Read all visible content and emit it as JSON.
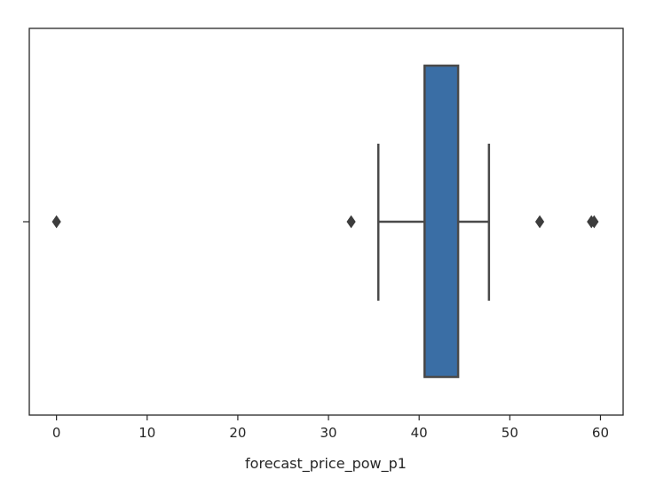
{
  "chart_data": {
    "type": "boxplot",
    "orientation": "horizontal",
    "xlabel": "forecast_price_pow_p1",
    "ylabel": "",
    "xlim": [
      -3,
      62.5
    ],
    "xticks": [
      0,
      10,
      20,
      30,
      40,
      50,
      60
    ],
    "xtick_labels": [
      "0",
      "10",
      "20",
      "30",
      "40",
      "50",
      "60"
    ],
    "grid": false,
    "box": {
      "whisker_low": 35.5,
      "q1": 40.6,
      "median": 40.6,
      "q3": 44.3,
      "whisker_high": 47.7
    },
    "outliers": [
      0.0,
      32.5,
      53.3,
      59.0,
      59.3
    ],
    "colors": {
      "box_fill": "#3a6ea5",
      "line": "#4a4a4a",
      "outlier": "#3d3d3d",
      "frame": "#262626"
    }
  }
}
